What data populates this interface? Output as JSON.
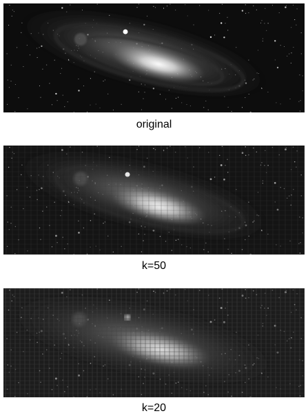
{
  "panels": [
    {
      "label": "original",
      "quality": "original"
    },
    {
      "label": "k=50",
      "quality": "k50"
    },
    {
      "label": "k=20",
      "quality": "k20"
    }
  ]
}
